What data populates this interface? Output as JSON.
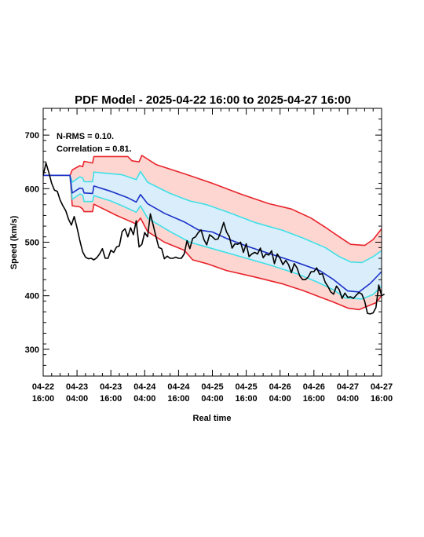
{
  "chart_data": {
    "type": "line",
    "title": "PDF Model - 2025-04-22 16:00 to 2025-04-27 16:00",
    "xlabel": "Real time",
    "ylabel": "Speed (km/s)",
    "ylim": [
      250,
      750
    ],
    "xlim_hours": [
      0,
      120
    ],
    "annotations": [
      "N-RMS = 0.10.",
      "Correlation = 0.81."
    ],
    "yticks": [
      {
        "value": 300,
        "label": "300"
      },
      {
        "value": 400,
        "label": "400"
      },
      {
        "value": 500,
        "label": "500"
      },
      {
        "value": 600,
        "label": "600"
      },
      {
        "value": 700,
        "label": "700"
      }
    ],
    "xticks": [
      {
        "hour": 0,
        "line1": "04-22",
        "line2": "16:00"
      },
      {
        "hour": 12,
        "line1": "04-23",
        "line2": "04:00"
      },
      {
        "hour": 24,
        "line1": "04-23",
        "line2": "16:00"
      },
      {
        "hour": 36,
        "line1": "04-24",
        "line2": "04:00"
      },
      {
        "hour": 48,
        "line1": "04-24",
        "line2": "16:00"
      },
      {
        "hour": 60,
        "line1": "04-25",
        "line2": "04:00"
      },
      {
        "hour": 72,
        "line1": "04-25",
        "line2": "16:00"
      },
      {
        "hour": 84,
        "line1": "04-26",
        "line2": "04:00"
      },
      {
        "hour": 96,
        "line1": "04-26",
        "line2": "16:00"
      },
      {
        "hour": 108,
        "line1": "04-27",
        "line2": "04:00"
      },
      {
        "hour": 120,
        "line1": "04-27",
        "line2": "16:00"
      }
    ],
    "colors": {
      "outer_band_fill": "#fdd6d1",
      "inner_band_fill": "#d9eefa",
      "outer_line": "#e8232a",
      "inner_line": "#3fe0e8",
      "median_line": "#1a2fc8",
      "observed_line": "#000000"
    },
    "series": {
      "outer_upper": [
        [
          0,
          625
        ],
        [
          9.5,
          625
        ],
        [
          10.3,
          635
        ],
        [
          13,
          643
        ],
        [
          14,
          641
        ],
        [
          14.5,
          651
        ],
        [
          17.5,
          648
        ],
        [
          18,
          660
        ],
        [
          30,
          660
        ],
        [
          31.5,
          652
        ],
        [
          34,
          650
        ],
        [
          35,
          662
        ],
        [
          40,
          645
        ],
        [
          50,
          628
        ],
        [
          60,
          610
        ],
        [
          70,
          590
        ],
        [
          80,
          572
        ],
        [
          88,
          562
        ],
        [
          95,
          545
        ],
        [
          100,
          528
        ],
        [
          105,
          510
        ],
        [
          109,
          496
        ],
        [
          114,
          494
        ],
        [
          117,
          505
        ],
        [
          120,
          525
        ]
      ],
      "inner_upper": [
        [
          0,
          625
        ],
        [
          9.5,
          625
        ],
        [
          10.3,
          612
        ],
        [
          13,
          622
        ],
        [
          14,
          620
        ],
        [
          14.5,
          613
        ],
        [
          17.5,
          613
        ],
        [
          18,
          631
        ],
        [
          28,
          626
        ],
        [
          33,
          617
        ],
        [
          34.5,
          632
        ],
        [
          37,
          612
        ],
        [
          45,
          591
        ],
        [
          52,
          577
        ],
        [
          58,
          570
        ],
        [
          65,
          557
        ],
        [
          75,
          537
        ],
        [
          85,
          522
        ],
        [
          92,
          508
        ],
        [
          100,
          490
        ],
        [
          105,
          473
        ],
        [
          109,
          463
        ],
        [
          113,
          462
        ],
        [
          117,
          473
        ],
        [
          120,
          484
        ]
      ],
      "median": [
        [
          0,
          625
        ],
        [
          9.5,
          625
        ],
        [
          10.3,
          592
        ],
        [
          13,
          601
        ],
        [
          14,
          600
        ],
        [
          14.5,
          592
        ],
        [
          17.5,
          591
        ],
        [
          18,
          605
        ],
        [
          24,
          595
        ],
        [
          30,
          583
        ],
        [
          33,
          575
        ],
        [
          34.5,
          589
        ],
        [
          37,
          572
        ],
        [
          43,
          554
        ],
        [
          50,
          538
        ],
        [
          55,
          523
        ],
        [
          60,
          519
        ],
        [
          65,
          507
        ],
        [
          72,
          493
        ],
        [
          80,
          479
        ],
        [
          90,
          462
        ],
        [
          98,
          447
        ],
        [
          103,
          430
        ],
        [
          108,
          409
        ],
        [
          112,
          407
        ],
        [
          116,
          423
        ],
        [
          120,
          445
        ]
      ],
      "inner_lower": [
        [
          0,
          625
        ],
        [
          9.5,
          625
        ],
        [
          10.3,
          580
        ],
        [
          13,
          590
        ],
        [
          14,
          588
        ],
        [
          14.5,
          576
        ],
        [
          17.5,
          576
        ],
        [
          18,
          587
        ],
        [
          24,
          577
        ],
        [
          28,
          568
        ],
        [
          33,
          556
        ],
        [
          34.5,
          568
        ],
        [
          37,
          545
        ],
        [
          45,
          520
        ],
        [
          52,
          500
        ],
        [
          60,
          488
        ],
        [
          70,
          473
        ],
        [
          80,
          458
        ],
        [
          90,
          441
        ],
        [
          97,
          426
        ],
        [
          103,
          411
        ],
        [
          107,
          396
        ],
        [
          113,
          394
        ],
        [
          117,
          402
        ],
        [
          120,
          418
        ]
      ],
      "outer_lower": [
        [
          0,
          625
        ],
        [
          9.5,
          625
        ],
        [
          10.3,
          568
        ],
        [
          13,
          566
        ],
        [
          14,
          562
        ],
        [
          14.5,
          557
        ],
        [
          17.5,
          557
        ],
        [
          18,
          571
        ],
        [
          26,
          550
        ],
        [
          33,
          534
        ],
        [
          34.5,
          545
        ],
        [
          37,
          520
        ],
        [
          43,
          500
        ],
        [
          50,
          485
        ],
        [
          53,
          467
        ],
        [
          58,
          460
        ],
        [
          65,
          447
        ],
        [
          75,
          435
        ],
        [
          85,
          422
        ],
        [
          92,
          410
        ],
        [
          98,
          398
        ],
        [
          103,
          388
        ],
        [
          108,
          377
        ],
        [
          112,
          374
        ],
        [
          118,
          387
        ],
        [
          120,
          400
        ]
      ],
      "observed": [
        [
          0,
          625
        ],
        [
          1,
          648
        ],
        [
          2,
          630
        ],
        [
          3,
          610
        ],
        [
          4,
          597
        ],
        [
          5,
          595
        ],
        [
          6,
          579
        ],
        [
          7,
          568
        ],
        [
          8,
          559
        ],
        [
          9,
          543
        ],
        [
          10,
          532
        ],
        [
          11,
          548
        ],
        [
          12,
          527
        ],
        [
          13,
          503
        ],
        [
          14,
          482
        ],
        [
          15,
          472
        ],
        [
          16,
          469
        ],
        [
          17,
          470
        ],
        [
          18,
          467
        ],
        [
          19,
          471
        ],
        [
          20,
          478
        ],
        [
          21,
          488
        ],
        [
          22,
          470
        ],
        [
          23,
          470
        ],
        [
          24,
          485
        ],
        [
          25,
          481
        ],
        [
          26,
          491
        ],
        [
          27,
          493
        ],
        [
          28,
          520
        ],
        [
          29,
          525
        ],
        [
          30,
          510
        ],
        [
          31,
          527
        ],
        [
          32,
          514
        ],
        [
          33,
          540
        ],
        [
          34,
          491
        ],
        [
          35,
          496
        ],
        [
          36,
          518
        ],
        [
          37,
          510
        ],
        [
          38,
          553
        ],
        [
          39,
          532
        ],
        [
          40,
          510
        ],
        [
          41,
          490
        ],
        [
          42,
          488
        ],
        [
          43,
          469
        ],
        [
          44,
          474
        ],
        [
          45,
          470
        ],
        [
          46,
          470
        ],
        [
          47,
          472
        ],
        [
          48,
          470
        ],
        [
          49,
          470
        ],
        [
          50,
          478
        ],
        [
          51,
          503
        ],
        [
          52,
          488
        ],
        [
          53,
          507
        ],
        [
          54,
          510
        ],
        [
          55,
          518
        ],
        [
          56,
          523
        ],
        [
          57,
          505
        ],
        [
          58,
          495
        ],
        [
          59,
          514
        ],
        [
          60,
          510
        ],
        [
          61,
          505
        ],
        [
          62,
          506
        ],
        [
          63,
          520
        ],
        [
          64,
          537
        ],
        [
          65,
          519
        ],
        [
          66,
          510
        ],
        [
          67,
          489
        ],
        [
          68,
          497
        ],
        [
          69,
          496
        ],
        [
          70,
          500
        ],
        [
          71,
          481
        ],
        [
          72,
          497
        ],
        [
          73,
          473
        ],
        [
          74,
          478
        ],
        [
          75,
          481
        ],
        [
          76,
          478
        ],
        [
          77,
          489
        ],
        [
          78,
          471
        ],
        [
          79,
          478
        ],
        [
          80,
          476
        ],
        [
          81,
          484
        ],
        [
          82,
          460
        ],
        [
          83,
          478
        ],
        [
          84,
          470
        ],
        [
          85,
          458
        ],
        [
          86,
          466
        ],
        [
          87,
          458
        ],
        [
          88,
          443
        ],
        [
          89,
          460
        ],
        [
          90,
          452
        ],
        [
          91,
          437
        ],
        [
          92,
          430
        ],
        [
          93,
          430
        ],
        [
          94,
          435
        ],
        [
          95,
          445
        ],
        [
          96,
          445
        ],
        [
          97,
          452
        ],
        [
          98,
          440
        ],
        [
          99,
          441
        ],
        [
          100,
          425
        ],
        [
          101,
          417
        ],
        [
          102,
          407
        ],
        [
          103,
          403
        ],
        [
          104,
          418
        ],
        [
          105,
          411
        ],
        [
          106,
          395
        ],
        [
          107,
          405
        ],
        [
          108,
          397
        ],
        [
          109,
          398
        ],
        [
          110,
          395
        ],
        [
          111,
          401
        ],
        [
          112,
          406
        ],
        [
          113,
          403
        ],
        [
          114,
          390
        ],
        [
          115,
          367
        ],
        [
          116,
          366
        ],
        [
          117,
          368
        ],
        [
          118,
          378
        ],
        [
          119,
          420
        ],
        [
          120,
          400
        ],
        [
          121,
          403
        ]
      ]
    }
  }
}
